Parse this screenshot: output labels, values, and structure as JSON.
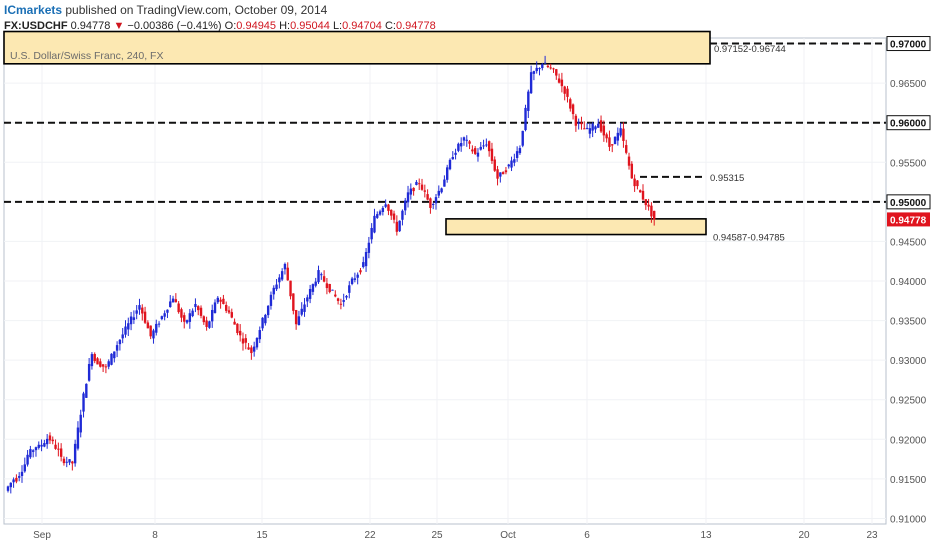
{
  "header": {
    "brand": "ICmarkets",
    "published": "published on TradingView.com, October 09, 2014",
    "symbol": "FX:USDCHF",
    "last": "0.94778",
    "change_arrow": "▼",
    "change": "−0.00386 (−0.41%)",
    "open_label": "O:",
    "open": "0.94945",
    "high_label": "H:",
    "high": "0.95044",
    "low_label": "L:",
    "low": "0.94704",
    "close_label": "C:",
    "close": "0.94778"
  },
  "colors": {
    "up": "#1f2ad6",
    "down": "#e0141e",
    "zone_fill": "#fce8b2",
    "zone_border": "#000000",
    "price_badge": "#e0141e"
  },
  "chart_data": {
    "type": "candlestick",
    "title": "U.S. Dollar/Swiss Franc, 240, FX",
    "ylim": [
      0.9093,
      0.9707
    ],
    "y_ticks": [
      "0.97000",
      "0.96500",
      "0.96000",
      "0.95500",
      "0.95000",
      "0.94500",
      "0.94000",
      "0.93500",
      "0.93000",
      "0.92500",
      "0.92000",
      "0.91500",
      "0.91000"
    ],
    "x_ticks": [
      "Sep",
      "8",
      "15",
      "22",
      "25",
      "Oct",
      "6",
      "13",
      "20",
      "23"
    ],
    "last_price": "0.94778",
    "levels": [
      {
        "value": 0.97,
        "label": "0.97000"
      },
      {
        "value": 0.96,
        "label": "0.96000"
      },
      {
        "value": 0.95315,
        "label": "0.95315"
      },
      {
        "value": 0.95,
        "label": "0.95000"
      }
    ],
    "zones": [
      {
        "label": "0.97152-0.96744",
        "low": 0.96744,
        "high": 0.97152
      },
      {
        "label": "0.94587-0.94785",
        "low": 0.94587,
        "high": 0.94785
      }
    ],
    "price_path": [
      [
        0.9135,
        0.9155
      ],
      [
        0.915,
        0.9175
      ],
      [
        0.918,
        0.9195
      ],
      [
        0.919,
        0.9205
      ],
      [
        0.92,
        0.918
      ],
      [
        0.9175,
        0.917
      ],
      [
        0.917,
        0.9255
      ],
      [
        0.9255,
        0.933
      ],
      [
        0.93,
        0.929
      ],
      [
        0.929,
        0.932
      ],
      [
        0.932,
        0.9345
      ],
      [
        0.9345,
        0.937
      ],
      [
        0.937,
        0.933
      ],
      [
        0.933,
        0.9355
      ],
      [
        0.9355,
        0.938
      ],
      [
        0.938,
        0.9345
      ],
      [
        0.9345,
        0.937
      ],
      [
        0.937,
        0.934
      ],
      [
        0.934,
        0.938
      ],
      [
        0.938,
        0.936
      ],
      [
        0.936,
        0.933
      ],
      [
        0.933,
        0.931
      ],
      [
        0.931,
        0.935
      ],
      [
        0.935,
        0.939
      ],
      [
        0.939,
        0.942
      ],
      [
        0.942,
        0.9345
      ],
      [
        0.9345,
        0.938
      ],
      [
        0.938,
        0.941
      ],
      [
        0.941,
        0.939
      ],
      [
        0.939,
        0.937
      ],
      [
        0.937,
        0.94
      ],
      [
        0.94,
        0.942
      ],
      [
        0.942,
        0.948
      ],
      [
        0.948,
        0.95
      ],
      [
        0.95,
        0.9465
      ],
      [
        0.9465,
        0.951
      ],
      [
        0.951,
        0.9525
      ],
      [
        0.9525,
        0.9495
      ],
      [
        0.9495,
        0.952
      ],
      [
        0.952,
        0.956
      ],
      [
        0.956,
        0.958
      ],
      [
        0.958,
        0.956
      ],
      [
        0.956,
        0.9575
      ],
      [
        0.9575,
        0.953
      ],
      [
        0.953,
        0.9545
      ],
      [
        0.9545,
        0.957
      ],
      [
        0.957,
        0.966
      ],
      [
        0.966,
        0.9675
      ],
      [
        0.9675,
        0.9665
      ],
      [
        0.9665,
        0.964
      ],
      [
        0.964,
        0.96
      ],
      [
        0.96,
        0.959
      ],
      [
        0.959,
        0.96
      ],
      [
        0.96,
        0.957
      ],
      [
        0.957,
        0.959
      ],
      [
        0.959,
        0.953
      ],
      [
        0.953,
        0.9505
      ],
      [
        0.9505,
        0.9478
      ]
    ]
  }
}
